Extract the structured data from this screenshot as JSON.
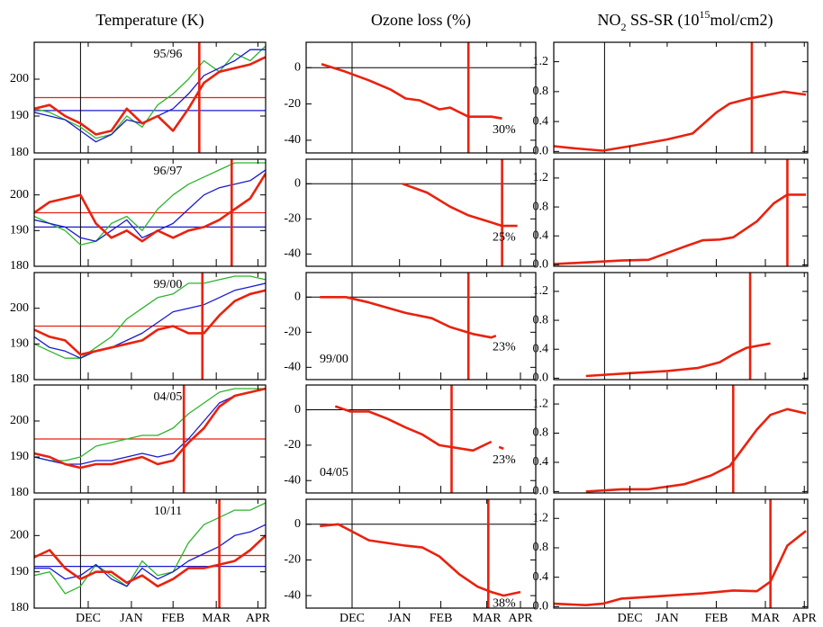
{
  "chart_data": [
    {
      "type": "line",
      "title": "Temperature (K)",
      "xlim": [
        15,
        165
      ],
      "ylim": [
        180,
        210
      ],
      "yticks": [
        180,
        190,
        200
      ],
      "xticks": [
        {
          "value": 50,
          "label": "DEC"
        },
        {
          "value": 78,
          "label": "JAN"
        },
        {
          "value": 105,
          "label": "FEB"
        },
        {
          "value": 133,
          "label": "MAR"
        },
        {
          "value": 160,
          "label": "APR"
        }
      ],
      "vline": 45,
      "x": [
        15,
        25,
        35,
        45,
        55,
        65,
        75,
        85,
        95,
        105,
        115,
        125,
        135,
        145,
        155,
        165
      ],
      "panels": [
        {
          "label": "95/96",
          "marker": 122,
          "hlines": [
            {
              "value": 195,
              "color": "#e8220f"
            },
            {
              "value": 191.5,
              "color": "#1a1ad0"
            }
          ],
          "series": [
            {
              "color": "#2db52d",
              "values": [
                192,
                191,
                189,
                187,
                184,
                185,
                190,
                187,
                193,
                196,
                200,
                205,
                202,
                207,
                205,
                209
              ]
            },
            {
              "color": "#1a1ad0",
              "values": [
                191,
                190,
                189,
                186,
                183,
                185,
                189,
                188,
                190,
                192,
                196,
                201,
                203,
                205,
                208,
                208
              ]
            },
            {
              "color": "#e8220f",
              "values": [
                192,
                193,
                190,
                188,
                185,
                186,
                192,
                188,
                190,
                186,
                192,
                199,
                202,
                203,
                204,
                206
              ]
            }
          ]
        },
        {
          "label": "96/97",
          "marker": 143,
          "hlines": [
            {
              "value": 195,
              "color": "#e8220f"
            },
            {
              "value": 191,
              "color": "#1a1ad0"
            }
          ],
          "series": [
            {
              "color": "#2db52d",
              "values": [
                194,
                192,
                190,
                186,
                187,
                192,
                194,
                190,
                196,
                200,
                203,
                205,
                207,
                209,
                209,
                209
              ]
            },
            {
              "color": "#1a1ad0",
              "values": [
                193,
                192,
                191,
                188,
                187,
                190,
                193,
                188,
                190,
                192,
                196,
                200,
                202,
                203,
                204,
                207
              ]
            },
            {
              "color": "#e8220f",
              "values": [
                195,
                198,
                199,
                200,
                192,
                188,
                190,
                187,
                190,
                188,
                190,
                191,
                193,
                196,
                199,
                206
              ]
            }
          ]
        },
        {
          "label": "99/00",
          "marker": 124,
          "hlines": [
            {
              "value": 195,
              "color": "#e8220f"
            }
          ],
          "series": [
            {
              "color": "#2db52d",
              "values": [
                190,
                188,
                186,
                186,
                189,
                192,
                197,
                200,
                203,
                204,
                207,
                207,
                208,
                209,
                209,
                208
              ]
            },
            {
              "color": "#1a1ad0",
              "values": [
                192,
                189,
                188,
                186,
                188,
                189,
                191,
                193,
                196,
                199,
                200,
                201,
                203,
                205,
                206,
                207
              ]
            },
            {
              "color": "#e8220f",
              "values": [
                194,
                192,
                191,
                187,
                188,
                189,
                190,
                191,
                194,
                195,
                193,
                193,
                198,
                202,
                204,
                205
              ]
            }
          ]
        },
        {
          "label": "04/05",
          "marker": 112,
          "hlines": [
            {
              "value": 195,
              "color": "#e8220f"
            }
          ],
          "series": [
            {
              "color": "#2db52d",
              "values": [
                190,
                189,
                189,
                190,
                193,
                194,
                195,
                196,
                196,
                198,
                202,
                205,
                208,
                209,
                209,
                209
              ]
            },
            {
              "color": "#1a1ad0",
              "values": [
                190,
                189,
                188,
                188,
                189,
                189,
                190,
                191,
                190,
                191,
                195,
                200,
                205,
                207,
                208,
                209
              ]
            },
            {
              "color": "#e8220f",
              "values": [
                191,
                190,
                188,
                187,
                188,
                188,
                189,
                190,
                188,
                189,
                194,
                198,
                204,
                207,
                208,
                209
              ]
            }
          ]
        },
        {
          "label": "10/11",
          "marker": 135,
          "hlines": [
            {
              "value": 194.5,
              "color": "#e8220f"
            },
            {
              "value": 191.5,
              "color": "#1a1ad0"
            }
          ],
          "series": [
            {
              "color": "#2db52d",
              "values": [
                189,
                190,
                184,
                186,
                192,
                189,
                186,
                193,
                189,
                190,
                198,
                203,
                205,
                207,
                207,
                209
              ]
            },
            {
              "color": "#1a1ad0",
              "values": [
                191,
                191,
                188,
                189,
                192,
                188,
                186,
                191,
                188,
                190,
                193,
                195,
                197,
                200,
                201,
                203
              ]
            },
            {
              "color": "#e8220f",
              "values": [
                194,
                196,
                191,
                188,
                190,
                190,
                187,
                189,
                186,
                188,
                191,
                191,
                192,
                193,
                196,
                200
              ]
            }
          ]
        }
      ]
    },
    {
      "type": "line",
      "title": "Ozone loss (%)",
      "xlim": [
        15,
        165
      ],
      "ylim": [
        -47,
        14
      ],
      "yticks": [
        0,
        -20,
        -40
      ],
      "zero_line": true,
      "xticks": [
        {
          "value": 45,
          "label": "DEC"
        },
        {
          "value": 76,
          "label": "JAN"
        },
        {
          "value": 103,
          "label": "FEB"
        },
        {
          "value": 133,
          "label": "MAR"
        },
        {
          "value": 155,
          "label": "APR"
        }
      ],
      "vline": 45,
      "panels": [
        {
          "marker": 121,
          "note": "30%",
          "series": [
            {
              "color": "#e8220f",
              "x": [
                25,
                40,
                56,
                70,
                80,
                89,
                102,
                109,
                121,
                136,
                143
              ],
              "values": [
                2,
                -2,
                -7,
                -12,
                -17,
                -18,
                -23,
                -22,
                -27,
                -27,
                -28
              ]
            }
          ]
        },
        {
          "marker": 143,
          "note": "25%",
          "series": [
            {
              "color": "#e8220f",
              "x": [
                78,
                94,
                109,
                121,
                136,
                143,
                153
              ],
              "values": [
                0,
                -5,
                -13,
                -18,
                -22,
                -24,
                -24
              ]
            }
          ]
        },
        {
          "marker": 121,
          "note": "23%",
          "label": "99/00",
          "series": [
            {
              "color": "#e8220f",
              "x": [
                24,
                41,
                56,
                80,
                97,
                109,
                124,
                136,
                139
              ],
              "values": [
                0,
                0,
                -3,
                -9,
                -12,
                -17,
                -21,
                -23,
                -22
              ]
            }
          ]
        },
        {
          "marker": 110,
          "note": "23%",
          "label": "04/05",
          "series": [
            {
              "color": "#e8220f",
              "x": [
                34,
                44,
                56,
                68,
                80,
                91,
                102,
                124,
                136,
                139,
                141,
                144
              ],
              "values": [
                2,
                -1,
                -1,
                -5,
                -10,
                -14,
                -20,
                -23,
                -18,
                null,
                -21,
                -22
              ]
            }
          ]
        },
        {
          "marker": 134,
          "note": "38%",
          "series": [
            {
              "color": "#e8220f",
              "x": [
                24,
                36,
                56,
                80,
                91,
                102,
                115,
                127,
                136,
                144,
                155
              ],
              "values": [
                -1,
                0,
                -9,
                -12,
                -13,
                -18,
                -28,
                -35,
                -38,
                -40,
                -38
              ]
            }
          ]
        }
      ]
    },
    {
      "type": "line",
      "title": [
        "NO",
        "2",
        " SS-SR (10",
        "15",
        "mol/cm2)"
      ],
      "xlim": [
        15,
        165
      ],
      "ylim": [
        -0.02,
        1.46
      ],
      "yticks": [
        {
          "value": 0,
          "label": "0.0"
        },
        {
          "value": 0.4,
          "label": "0.4"
        },
        {
          "value": 0.8,
          "label": "0.8"
        },
        {
          "value": 1.2,
          "label": "1.2"
        }
      ],
      "xticks": [
        {
          "value": 60,
          "label": "DEC"
        },
        {
          "value": 82,
          "label": "JAN"
        },
        {
          "value": 111,
          "label": "FEB"
        },
        {
          "value": 140,
          "label": "MAR"
        },
        {
          "value": 163,
          "label": "APR"
        }
      ],
      "vline": 45,
      "panels": [
        {
          "marker": 132,
          "series": [
            {
              "color": "#e8220f",
              "x": [
                15,
                28,
                44,
                60,
                82,
                97,
                111,
                119,
                129,
                151,
                164
              ],
              "values": [
                0.07,
                0.04,
                0.01,
                0.07,
                0.16,
                0.24,
                0.52,
                0.64,
                0.7,
                0.8,
                0.76
              ]
            }
          ]
        },
        {
          "marker": 153,
          "series": [
            {
              "color": "#e8220f",
              "x": [
                15,
                55,
                71,
                92,
                103,
                113,
                121,
                135,
                145,
                153,
                164
              ],
              "values": [
                0.01,
                0.06,
                0.07,
                0.25,
                0.34,
                0.35,
                0.38,
                0.6,
                0.85,
                0.97,
                0.97
              ]
            }
          ]
        },
        {
          "marker": 131,
          "series": [
            {
              "color": "#e8220f",
              "x": [
                34,
                60,
                82,
                100,
                113,
                121,
                129,
                143
              ],
              "values": [
                0.03,
                0.07,
                0.1,
                0.14,
                0.22,
                0.33,
                0.42,
                0.48
              ]
            }
          ]
        },
        {
          "marker": 121,
          "series": [
            {
              "color": "#e8220f",
              "x": [
                34,
                55,
                71,
                92,
                108,
                119,
                127,
                135,
                143,
                153,
                164
              ],
              "values": [
                0,
                0.03,
                0.03,
                0.1,
                0.22,
                0.35,
                0.6,
                0.85,
                1.05,
                1.13,
                1.07
              ]
            }
          ]
        },
        {
          "marker": 143,
          "series": [
            {
              "color": "#e8220f",
              "x": [
                15,
                34,
                44,
                55,
                76,
                103,
                121,
                135,
                143,
                153,
                164
              ],
              "values": [
                0.04,
                0.02,
                0.04,
                0.11,
                0.14,
                0.18,
                0.22,
                0.21,
                0.34,
                0.83,
                1.03
              ]
            }
          ]
        }
      ]
    }
  ]
}
